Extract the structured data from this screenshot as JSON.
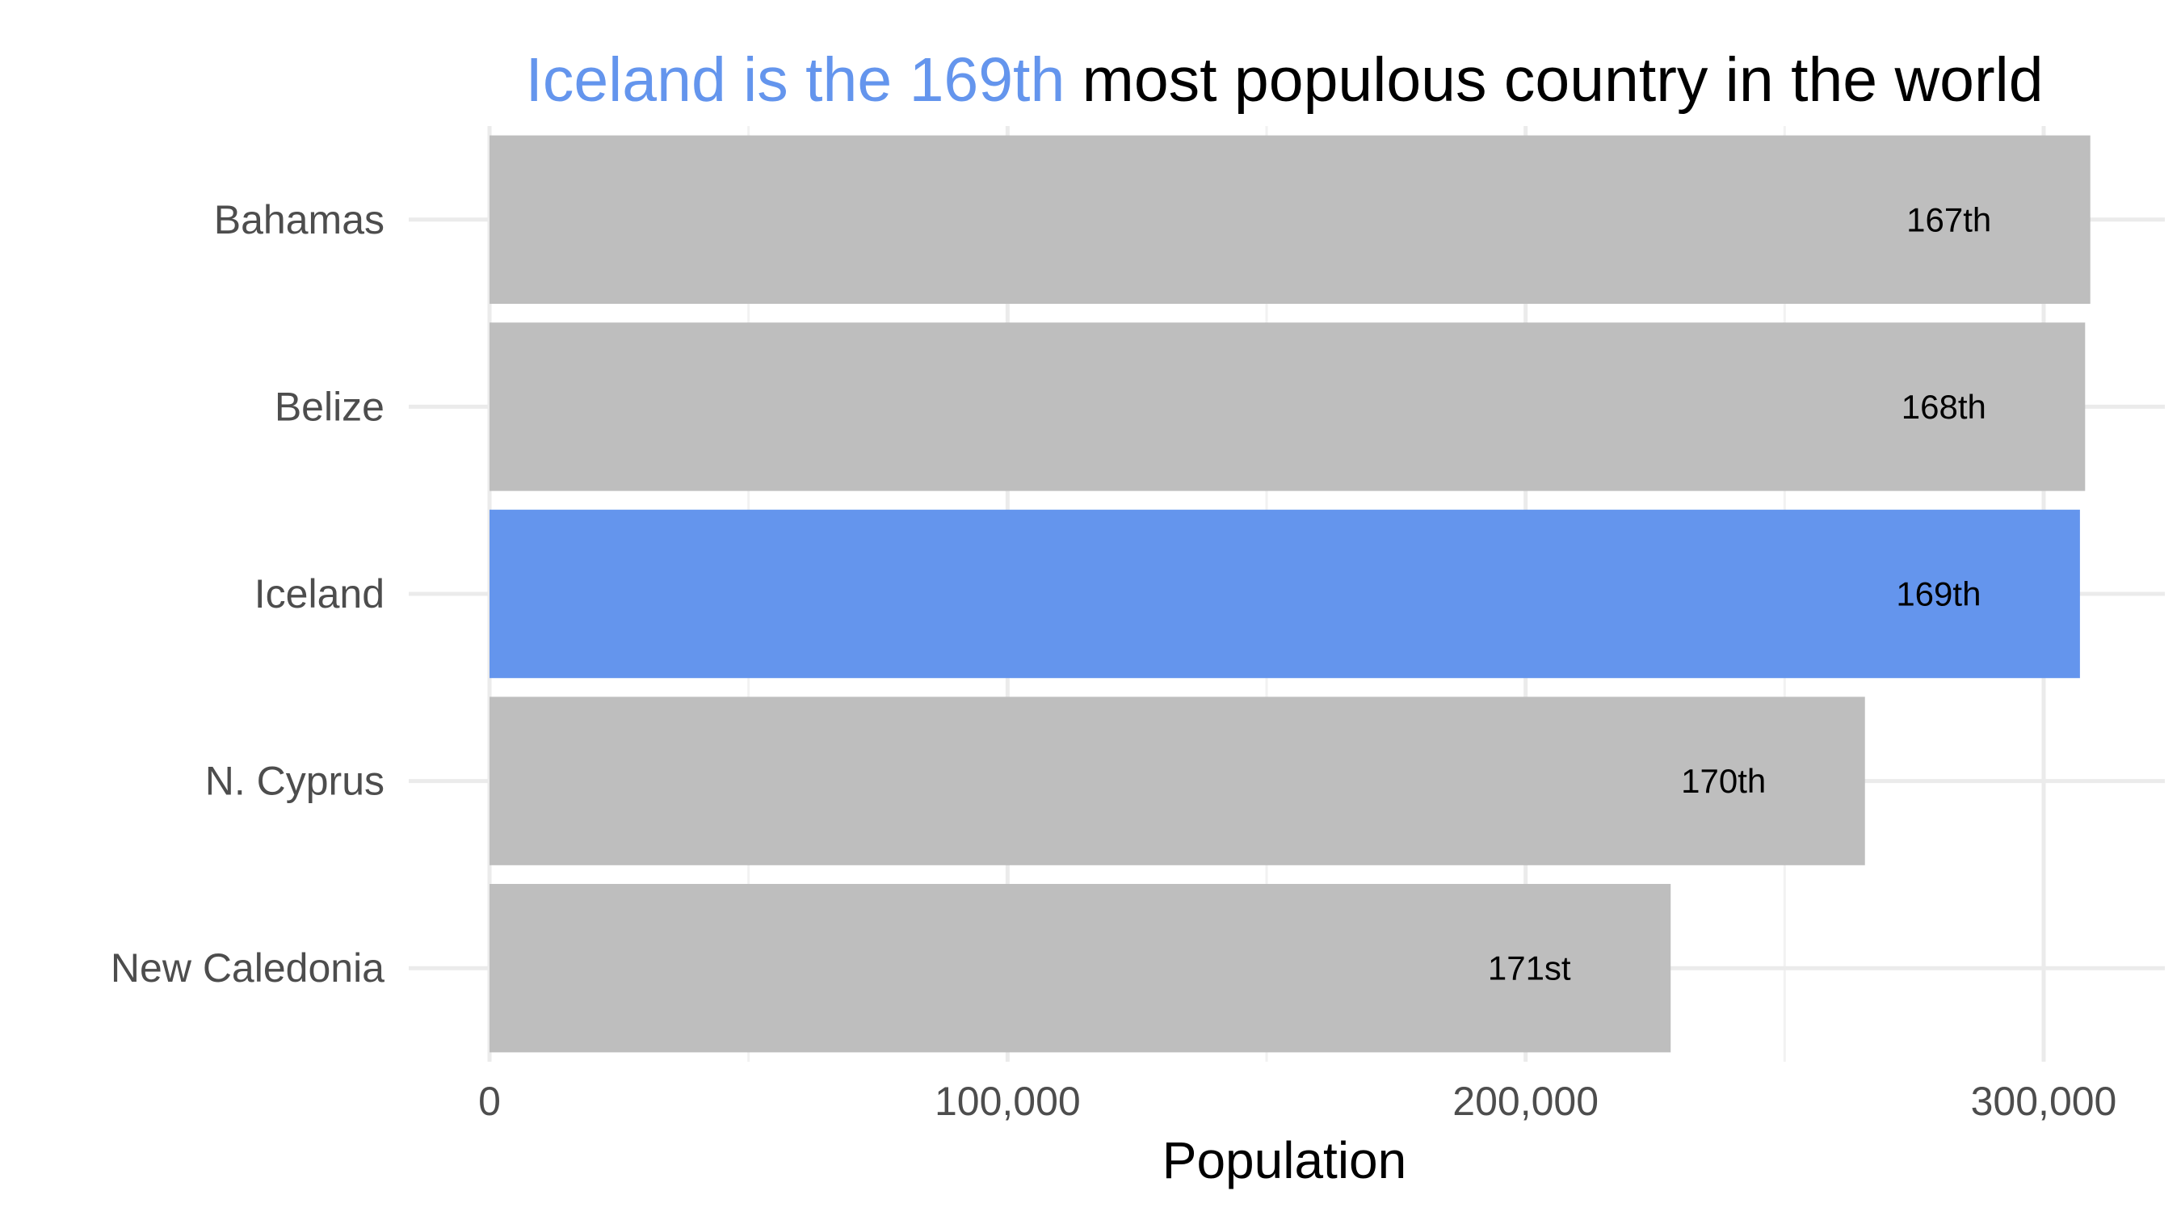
{
  "chart_data": {
    "type": "bar",
    "orientation": "horizontal",
    "title_parts": [
      {
        "text": "Iceland is the 169th",
        "color": "#6495ed"
      },
      {
        "text": " most populous country in the world",
        "color": "#000000"
      }
    ],
    "xlabel": "Population",
    "ylabel": "",
    "xlim": [
      0,
      310000
    ],
    "x_ticks": [
      0,
      100000,
      200000,
      300000
    ],
    "x_tick_labels": [
      "0",
      "100,000",
      "200,000",
      "300,000"
    ],
    "categories": [
      "Bahamas",
      "Belize",
      "Iceland",
      "N. Cyprus",
      "New Caledonia"
    ],
    "values": [
      309000,
      308000,
      307000,
      265500,
      228000
    ],
    "rank_labels": [
      "167th",
      "168th",
      "169th",
      "170th",
      "171st"
    ],
    "highlight": "Iceland",
    "grid": true,
    "legend": "none"
  },
  "colors": {
    "bar_default": "#bebebe",
    "bar_highlight": "#6495ed",
    "grid_major": "#ebebeb",
    "grid_minor": "#f2f2f2",
    "tick_text": "#4d4d4d"
  }
}
